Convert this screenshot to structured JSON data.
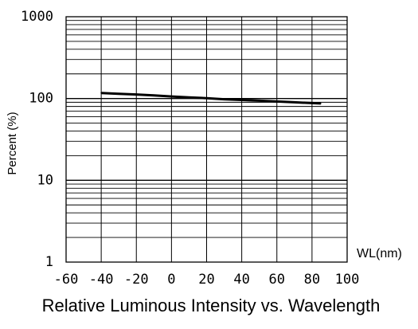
{
  "chart_data": {
    "type": "line",
    "title": "Relative Luminous Intensity vs. Wavelength",
    "xlabel": "WL(nm)",
    "ylabel": "Percent (%)",
    "x_ticks": [
      "-60",
      "-40",
      "-20",
      "0",
      "20",
      "40",
      "60",
      "80",
      "100"
    ],
    "y_ticks": [
      "1",
      "10",
      "100",
      "1000"
    ],
    "xlim": [
      -60,
      100
    ],
    "ylim": [
      1,
      1000
    ],
    "y_scale": "log",
    "grid": true,
    "series": [
      {
        "x": [
          -40,
          -30,
          -20,
          -10,
          0,
          10,
          20,
          30,
          40,
          50,
          60,
          70,
          80,
          85
        ],
        "y": [
          117,
          114,
          112,
          109,
          106,
          103,
          101,
          98,
          96,
          94,
          92,
          90,
          88,
          87
        ]
      }
    ]
  },
  "colors": {
    "line": "#000000",
    "grid": "#000000",
    "background": "#ffffff"
  }
}
